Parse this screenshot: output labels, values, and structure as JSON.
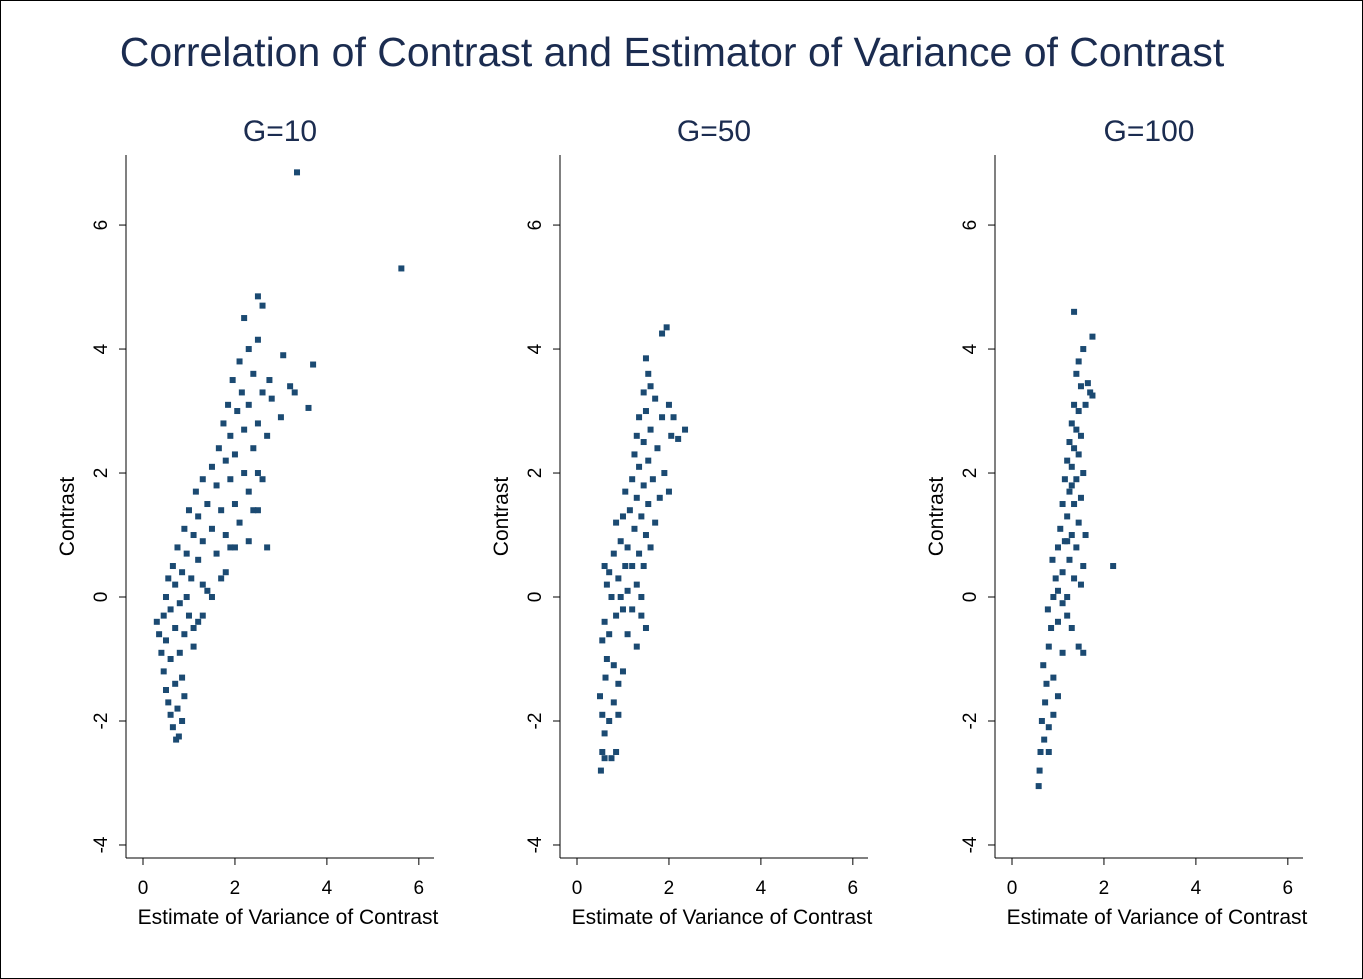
{
  "title": "Correlation of Contrast and Estimator of Variance of Contrast",
  "chart_data": [
    {
      "type": "scatter",
      "title": "G=10",
      "xlabel": "Estimate of Variance of Contrast",
      "ylabel": "Contrast",
      "color": "#1b4a72",
      "xlim": [
        -0.37,
        6.33
      ],
      "ylim": [
        -4.21,
        7.13
      ],
      "xticks": [
        0,
        2,
        4,
        6
      ],
      "yticks": [
        -4,
        -2,
        0,
        2,
        4,
        6
      ],
      "x": [
        0.3,
        0.35,
        0.4,
        0.45,
        0.5,
        0.55,
        0.6,
        0.65,
        0.72,
        0.78,
        0.75,
        0.7,
        0.6,
        0.5,
        0.45,
        0.5,
        0.55,
        0.6,
        0.7,
        0.8,
        0.85,
        0.9,
        0.8,
        0.7,
        0.65,
        0.75,
        0.85,
        0.95,
        1.0,
        1.1,
        1.2,
        1.05,
        0.95,
        0.9,
        1.0,
        1.1,
        1.2,
        1.3,
        1.4,
        1.3,
        1.2,
        1.15,
        1.3,
        1.4,
        1.5,
        1.6,
        1.7,
        1.5,
        1.6,
        1.7,
        1.8,
        1.9,
        1.65,
        1.8,
        1.9,
        2.0,
        2.1,
        1.75,
        1.9,
        2.0,
        2.2,
        2.3,
        2.4,
        1.85,
        2.05,
        2.2,
        2.4,
        2.5,
        1.95,
        2.15,
        2.3,
        2.5,
        2.7,
        2.1,
        2.4,
        2.6,
        2.8,
        3.0,
        2.2,
        2.5,
        2.6,
        2.5,
        2.3,
        2.75,
        3.05,
        3.2,
        3.3,
        3.7,
        3.6,
        3.35,
        5.62,
        2.6,
        2.5,
        2.7,
        2.3,
        2.0,
        1.8,
        1.5,
        1.3,
        1.1,
        0.9,
        0.85
      ],
      "y": [
        -0.4,
        -0.6,
        -0.9,
        -1.2,
        -1.5,
        -1.7,
        -1.9,
        -2.1,
        -2.3,
        -2.25,
        -1.8,
        -1.4,
        -1.0,
        -0.7,
        -0.3,
        0,
        0.3,
        -0.2,
        -0.5,
        -0.9,
        -1.3,
        -0.6,
        -0.1,
        0.2,
        0.5,
        0.8,
        0.4,
        0,
        -0.3,
        -0.5,
        -0.4,
        0.3,
        0.7,
        1.1,
        1.4,
        1.0,
        0.6,
        0.2,
        0.1,
        0.9,
        1.3,
        1.7,
        1.9,
        1.5,
        1.1,
        0.7,
        0.3,
        2.1,
        1.8,
        1.4,
        1.0,
        0.8,
        2.4,
        2.2,
        1.9,
        1.5,
        1.2,
        2.8,
        2.6,
        2.3,
        2.0,
        1.7,
        1.4,
        3.1,
        3.0,
        2.7,
        2.4,
        2.0,
        3.5,
        3.3,
        3.1,
        2.8,
        2.6,
        3.8,
        3.6,
        3.3,
        3.2,
        2.9,
        4.5,
        4.85,
        4.7,
        4.15,
        4.0,
        3.5,
        3.9,
        3.4,
        3.3,
        3.75,
        3.05,
        6.85,
        5.3,
        1.9,
        1.4,
        0.8,
        0.9,
        0.8,
        0.4,
        0.0,
        -0.3,
        -0.8,
        -1.6,
        -2.0
      ]
    },
    {
      "type": "scatter",
      "title": "G=50",
      "xlabel": "Estimate of Variance of Contrast",
      "ylabel": "Contrast",
      "color": "#1b4a72",
      "xlim": [
        -0.37,
        6.33
      ],
      "ylim": [
        -4.21,
        7.13
      ],
      "xticks": [
        0,
        2,
        4,
        6
      ],
      "yticks": [
        -4,
        -2,
        0,
        2,
        4,
        6
      ],
      "x": [
        0.52,
        0.55,
        0.6,
        0.55,
        0.5,
        0.62,
        0.7,
        0.75,
        0.8,
        0.65,
        0.55,
        0.6,
        0.7,
        0.8,
        0.9,
        0.85,
        0.75,
        0.65,
        0.6,
        0.7,
        0.8,
        0.9,
        1.0,
        1.1,
        1.2,
        0.95,
        0.85,
        1.0,
        1.1,
        1.2,
        1.3,
        1.4,
        1.5,
        1.05,
        1.15,
        1.25,
        1.35,
        1.45,
        1.2,
        1.3,
        1.4,
        1.5,
        1.6,
        1.25,
        1.35,
        1.45,
        1.55,
        1.7,
        1.3,
        1.45,
        1.55,
        1.65,
        1.8,
        1.35,
        1.5,
        1.6,
        1.75,
        1.9,
        2.0,
        1.45,
        1.55,
        1.5,
        1.7,
        1.85,
        2.05,
        2.2,
        2.35,
        2.1,
        1.95,
        1.85,
        1.6,
        2.0,
        1.4,
        1.3,
        1.0,
        0.9,
        0.85,
        0.6,
        1.1,
        0.95,
        1.05
      ],
      "y": [
        -2.8,
        -2.5,
        -2.2,
        -1.9,
        -1.6,
        -1.3,
        -2.0,
        -2.6,
        -1.7,
        -1.0,
        -0.7,
        -0.4,
        -0.6,
        -1.1,
        -1.4,
        -0.3,
        0,
        0.2,
        0.5,
        0.4,
        0.7,
        0.3,
        -0.2,
        -0.6,
        -0.2,
        0.9,
        1.2,
        1.3,
        0.8,
        0.5,
        0.2,
        0.0,
        -0.5,
        1.7,
        1.4,
        1.1,
        0.7,
        0.5,
        1.9,
        1.6,
        1.3,
        1.0,
        0.8,
        2.3,
        2.1,
        1.8,
        1.5,
        1.2,
        2.6,
        2.5,
        2.2,
        1.9,
        1.6,
        2.9,
        3.0,
        2.7,
        2.4,
        2.0,
        1.7,
        3.3,
        3.6,
        3.85,
        3.2,
        2.9,
        2.6,
        2.55,
        2.7,
        2.9,
        4.35,
        4.25,
        3.4,
        3.1,
        -0.3,
        -0.8,
        -1.2,
        -1.9,
        -2.5,
        -2.6,
        0.1,
        0.0,
        0.5
      ]
    },
    {
      "type": "scatter",
      "title": "G=100",
      "xlabel": "Estimate of Variance of Contrast",
      "ylabel": "Contrast",
      "color": "#1b4a72",
      "xlim": [
        -0.37,
        6.33
      ],
      "ylim": [
        -4.21,
        7.13
      ],
      "xticks": [
        0,
        2,
        4,
        6
      ],
      "yticks": [
        -4,
        -2,
        0,
        2,
        4,
        6
      ],
      "x": [
        0.58,
        0.6,
        0.62,
        0.7,
        0.65,
        0.72,
        0.8,
        0.75,
        0.68,
        0.8,
        0.9,
        0.85,
        0.78,
        0.9,
        1.0,
        1.1,
        0.95,
        0.88,
        1.0,
        1.1,
        1.2,
        1.3,
        1.45,
        1.05,
        1.15,
        1.25,
        1.35,
        1.5,
        1.1,
        1.2,
        1.3,
        1.4,
        1.55,
        1.15,
        1.25,
        1.35,
        1.45,
        1.6,
        1.2,
        1.3,
        1.4,
        1.5,
        1.25,
        1.35,
        1.45,
        1.55,
        1.3,
        1.4,
        1.5,
        1.35,
        1.45,
        1.6,
        1.7,
        1.65,
        1.75,
        1.5,
        1.45,
        1.4,
        1.35,
        1.75,
        1.55,
        2.2,
        1.55,
        1.2,
        1.0,
        0.9,
        0.8,
        1.0,
        1.1,
        1.3,
        1.2
      ],
      "y": [
        -3.05,
        -2.8,
        -2.5,
        -2.3,
        -2.0,
        -1.7,
        -2.1,
        -1.4,
        -1.1,
        -0.8,
        -1.3,
        -0.5,
        -0.2,
        0,
        -0.4,
        -0.9,
        0.3,
        0.6,
        0.8,
        0.4,
        0.0,
        -0.5,
        -0.8,
        1.1,
        0.9,
        0.6,
        0.3,
        0.2,
        1.5,
        1.3,
        1.0,
        0.8,
        0.5,
        1.9,
        1.7,
        1.5,
        1.2,
        1.0,
        2.2,
        2.1,
        1.9,
        1.6,
        2.5,
        2.4,
        2.3,
        2.0,
        2.8,
        2.7,
        2.6,
        3.1,
        3.0,
        3.1,
        3.3,
        3.45,
        3.25,
        3.4,
        3.8,
        3.6,
        4.6,
        4.2,
        4.0,
        0.5,
        -0.9,
        -0.3,
        -1.6,
        -1.9,
        -2.5,
        0.1,
        -0.1,
        1.8,
        0.9
      ]
    }
  ]
}
